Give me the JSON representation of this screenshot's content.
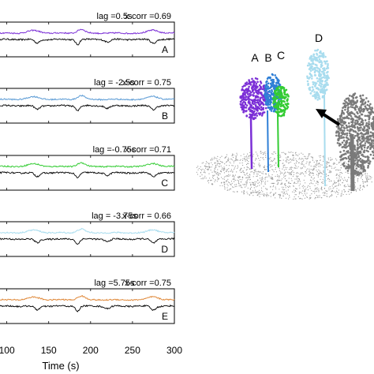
{
  "chart_data": {
    "type": "line",
    "xlabel": "Time (s)",
    "xlim": [
      90,
      300
    ],
    "xticks": [
      100,
      150,
      200,
      250,
      300
    ],
    "xtick_labels": [
      "100",
      "150",
      "200",
      "250",
      "300"
    ],
    "panels": [
      {
        "letter": "A",
        "lag_text": "lag =0.5s",
        "xcorr_text": "x-corr =0.69",
        "color": "#7b2fd6"
      },
      {
        "letter": "B",
        "lag_text": "lag = -2.5s",
        "xcorr_text": "x-corr = 0.75",
        "color": "#5b9bd5"
      },
      {
        "letter": "C",
        "lag_text": "lag =-0.75s",
        "xcorr_text": "x-corr =0.71",
        "color": "#33cc33"
      },
      {
        "letter": "D",
        "lag_text": "lag = -3.75s",
        "xcorr_text": "x-corr = 0.66",
        "color": "#a8dcee"
      },
      {
        "letter": "E",
        "lag_text": "lag =5.75s",
        "xcorr_text": "x-corr =0.75",
        "color": "#e08a3c"
      }
    ]
  },
  "scene": {
    "tree_labels": [
      "A",
      "B",
      "C",
      "D"
    ],
    "tree_colors": {
      "A": "#7b2fd6",
      "B": "#2f7fd6",
      "C": "#33cc33",
      "D": "#a8dcee",
      "reference": "#7a7a7a"
    },
    "ground_color": "#9a9a9a",
    "arrow_color": "#000000"
  }
}
